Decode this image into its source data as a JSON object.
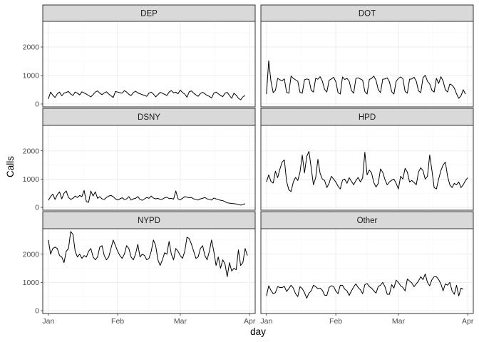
{
  "chart_data": {
    "type": "line",
    "xlabel": "day",
    "ylabel": "Calls",
    "x_ticks": [
      {
        "day": 0,
        "label": "Jan"
      },
      {
        "day": 31,
        "label": "Feb"
      },
      {
        "day": 59,
        "label": "Mar"
      },
      {
        "day": 90,
        "label": "Apr"
      }
    ],
    "xlim": [
      -2.5,
      92.5
    ],
    "ylim": [
      -100,
      2900
    ],
    "y_ticks": [
      0,
      1000,
      2000
    ],
    "grid": true,
    "x_start": "2019-01-01",
    "panels": [
      {
        "name": "DEP",
        "values": [
          180,
          420,
          310,
          230,
          360,
          420,
          290,
          380,
          410,
          440,
          350,
          300,
          420,
          380,
          320,
          430,
          390,
          350,
          300,
          250,
          330,
          420,
          460,
          380,
          330,
          390,
          430,
          350,
          290,
          230,
          440,
          420,
          400,
          380,
          470,
          420,
          340,
          300,
          400,
          450,
          390,
          360,
          330,
          300,
          270,
          380,
          420,
          350,
          250,
          330,
          410,
          380,
          340,
          300,
          420,
          470,
          390,
          420,
          360,
          490,
          400,
          350,
          240,
          430,
          460,
          380,
          320,
          270,
          370,
          410,
          360,
          300,
          270,
          210,
          380,
          420,
          360,
          300,
          260,
          380,
          410,
          300,
          200,
          380,
          310,
          200,
          150,
          250,
          300
        ]
      },
      {
        "name": "DOT",
        "values": [
          350,
          1520,
          800,
          400,
          480,
          900,
          850,
          820,
          880,
          410,
          380,
          980,
          900,
          850,
          800,
          410,
          380,
          850,
          880,
          860,
          480,
          420,
          900,
          870,
          960,
          800,
          510,
          420,
          830,
          880,
          940,
          790,
          400,
          350,
          950,
          860,
          900,
          800,
          470,
          380,
          900,
          920,
          880,
          840,
          440,
          350,
          860,
          900,
          980,
          830,
          500,
          400,
          870,
          880,
          920,
          780,
          430,
          350,
          800,
          900,
          950,
          890,
          440,
          380,
          870,
          880,
          940,
          800,
          460,
          400,
          920,
          1010,
          800,
          700,
          480,
          420,
          900,
          720,
          960,
          810,
          500,
          420,
          700,
          660,
          560,
          360,
          200,
          290,
          500,
          350
        ]
      },
      {
        "name": "DSNY",
        "values": [
          250,
          380,
          470,
          280,
          450,
          550,
          300,
          500,
          580,
          350,
          280,
          320,
          400,
          350,
          420,
          380,
          600,
          200,
          180,
          580,
          400,
          550,
          320,
          380,
          300,
          280,
          350,
          400,
          420,
          380,
          300,
          260,
          300,
          340,
          280,
          300,
          380,
          260,
          300,
          320,
          380,
          280,
          250,
          300,
          350,
          320,
          400,
          330,
          300,
          320,
          280,
          290,
          340,
          360,
          310,
          320,
          290,
          580,
          300,
          270,
          320,
          380,
          360,
          340,
          350,
          300,
          280,
          260,
          300,
          320,
          350,
          300,
          280,
          260,
          330,
          300,
          280,
          250,
          240,
          200,
          160,
          150,
          140,
          130,
          120,
          100,
          80,
          100,
          130
        ]
      },
      {
        "name": "HPD",
        "values": [
          900,
          1150,
          920,
          860,
          1280,
          1050,
          1350,
          1600,
          1680,
          920,
          620,
          560,
          900,
          1060,
          950,
          1250,
          1850,
          1220,
          1800,
          1980,
          1400,
          800,
          1050,
          1700,
          1200,
          1000,
          950,
          700,
          850,
          1100,
          1000,
          900,
          750,
          650,
          960,
          1000,
          850,
          1050,
          920,
          800,
          950,
          1060,
          900,
          1040,
          1950,
          1150,
          1320,
          1220,
          880,
          720,
          850,
          1360,
          1240,
          980,
          800,
          900,
          960,
          1000,
          850,
          650,
          1100,
          1000,
          1380,
          1250,
          900,
          950,
          880,
          800,
          1250,
          1400,
          1300,
          1000,
          1100,
          1850,
          1300,
          700,
          650,
          1000,
          1300,
          1500,
          1600,
          1100,
          800,
          700,
          850,
          800,
          900,
          700,
          800,
          950,
          1050
        ]
      },
      {
        "name": "NYPD",
        "values": [
          2500,
          2000,
          2200,
          2250,
          2200,
          1950,
          1900,
          1700,
          2100,
          2200,
          2800,
          2700,
          2100,
          1900,
          2000,
          1850,
          1950,
          1900,
          2100,
          2200,
          1900,
          1800,
          1900,
          2250,
          2300,
          1950,
          1800,
          1900,
          2200,
          2500,
          2300,
          2100,
          1950,
          1850,
          2000,
          2300,
          2200,
          1900,
          1800,
          2000,
          2350,
          1900,
          2000,
          1950,
          1800,
          1850,
          2100,
          2500,
          2300,
          1800,
          1600,
          1800,
          2050,
          2000,
          2450,
          2000,
          1800,
          2200,
          2100,
          1950,
          1850,
          2100,
          2600,
          2550,
          2350,
          2100,
          1850,
          1900,
          2200,
          2300,
          1950,
          1800,
          2100,
          2500,
          2100,
          1600,
          1900,
          1500,
          1800,
          1650,
          1200,
          1700,
          1400,
          1500,
          1450,
          2150,
          1600,
          1700,
          2200,
          1950
        ]
      },
      {
        "name": "Other",
        "values": [
          520,
          880,
          720,
          600,
          640,
          850,
          820,
          820,
          860,
          680,
          780,
          900,
          800,
          600,
          500,
          850,
          780,
          640,
          440,
          620,
          700,
          900,
          850,
          780,
          800,
          720,
          550,
          540,
          820,
          880,
          860,
          700,
          600,
          900,
          900,
          760,
          700,
          540,
          700,
          840,
          950,
          820,
          740,
          600,
          920,
          960,
          850,
          800,
          700,
          620,
          860,
          900,
          1000,
          850,
          580,
          580,
          920,
          800,
          1080,
          1000,
          880,
          820,
          700,
          1120,
          1050,
          980,
          850,
          950,
          1050,
          1200,
          1100,
          1300,
          1000,
          880,
          1100,
          1200,
          1200,
          1100,
          950,
          700,
          950,
          900,
          1000,
          700,
          580,
          900,
          520,
          800,
          760
        ]
      }
    ]
  }
}
